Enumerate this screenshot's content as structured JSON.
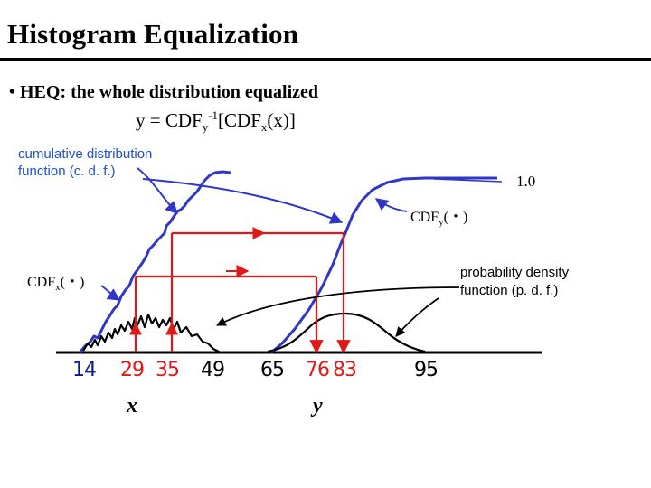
{
  "slide": {
    "title": "Histogram Equalization",
    "bullet": "• HEQ: the whole distribution equalized",
    "formula": {
      "lhs": "y = CDF",
      "sub_y": "y",
      "sup": "-1",
      "mid": "[CDF",
      "sub_x": "x",
      "rhs": "(x)]"
    }
  },
  "labels": {
    "cdf_line1": "cumulative distribution",
    "cdf_line2": "function (c. d. f.)",
    "pdf_line1": "probability density",
    "pdf_line2": "function (p. d. f.)",
    "one": "1.0",
    "cdfy_main": "CDF",
    "cdfy_sub": "y",
    "cdfy_arg": "(・)",
    "cdfx_main": "CDF",
    "cdfx_sub": "x",
    "cdfx_arg": "(・)"
  },
  "ticks": {
    "t14": "14",
    "t29": "29",
    "t35": "35",
    "t49": "49",
    "t65": "65",
    "t76": "76",
    "t83": "83",
    "t95": "95"
  },
  "axis_vars": {
    "x": "x",
    "y": "y"
  },
  "colors": {
    "blue": "#2f37c8",
    "red": "#e01818",
    "black": "#000000",
    "label_blue": "#1e4fd6"
  }
}
